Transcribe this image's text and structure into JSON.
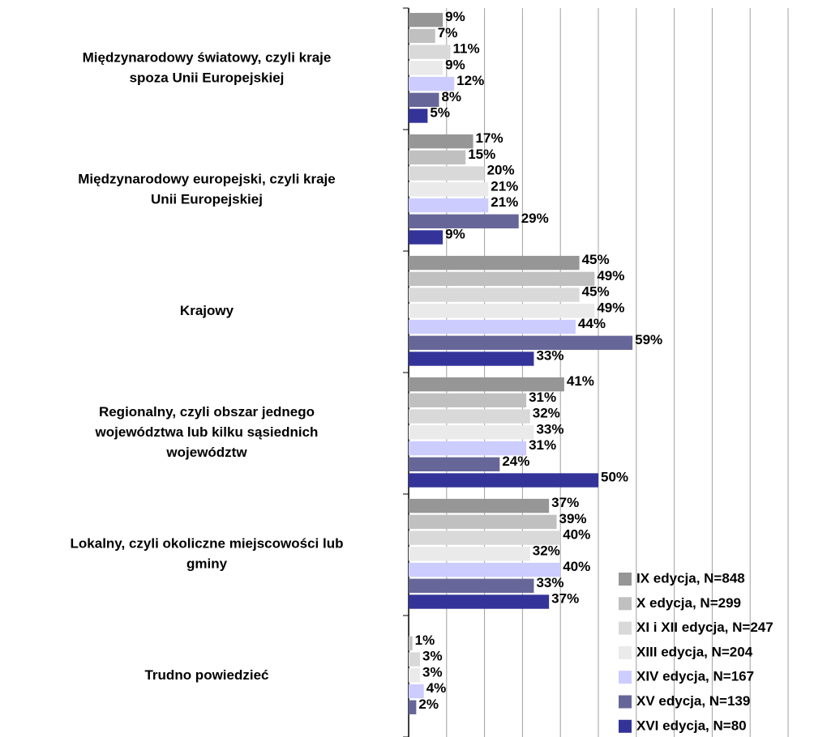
{
  "chart_data": {
    "type": "bar",
    "orientation": "horizontal",
    "categories": [
      "Międzynarodowy światowy, czyli kraje spoza Unii Europejskiej",
      "Międzynarodowy europejski, czyli kraje Unii Europejskiej",
      "Krajowy",
      "Regionalny, czyli obszar jednego województwa lub kilku sąsiednich województw",
      "Lokalny, czyli okoliczne miejscowości lub gminy",
      "Trudno powiedzieć"
    ],
    "series": [
      {
        "name": "IX edycja, N=848",
        "color": "#969696",
        "values": [
          9,
          17,
          45,
          41,
          37,
          null
        ],
        "value_labels": [
          "9%",
          "17%",
          "45%",
          "41%",
          "37%",
          null
        ]
      },
      {
        "name": "X edycja, N=299",
        "color": "#c0c0c0",
        "values": [
          7,
          15,
          49,
          31,
          39,
          1
        ],
        "value_labels": [
          "7%",
          "15%",
          "49%",
          "31%",
          "39%",
          "1%"
        ]
      },
      {
        "name": "XI i XII edycja, N=247",
        "color": "#d9d9d9",
        "values": [
          11,
          20,
          45,
          32,
          40,
          3
        ],
        "value_labels": [
          "11%",
          "20%",
          "45%",
          "32%",
          "40%",
          "3%"
        ]
      },
      {
        "name": "XIII edycja, N=204",
        "color": "#eaeaea",
        "values": [
          9,
          21,
          49,
          33,
          32,
          3
        ],
        "value_labels": [
          "9%",
          "21%",
          "49%",
          "33%",
          "32%",
          "3%"
        ]
      },
      {
        "name": "XIV edycja, N=167",
        "color": "#ccccff",
        "values": [
          12,
          21,
          44,
          31,
          40,
          4
        ],
        "value_labels": [
          "12%",
          "21%",
          "44%",
          "31%",
          "40%",
          "4%"
        ]
      },
      {
        "name": "XV edycja, N=139",
        "color": "#666699",
        "values": [
          8,
          29,
          59,
          24,
          33,
          2
        ],
        "value_labels": [
          "8%",
          "29%",
          "59%",
          "24%",
          "33%",
          "2%"
        ]
      },
      {
        "name": "XVI edycja, N=80",
        "color": "#333399",
        "values": [
          5,
          9,
          33,
          50,
          37,
          null
        ],
        "value_labels": [
          "5%",
          "9%",
          "33%",
          "50%",
          "37%",
          null
        ]
      }
    ],
    "xlim": [
      0,
      100
    ],
    "xticks": [
      0,
      10,
      20,
      30,
      40,
      50,
      60,
      70,
      80,
      90,
      100
    ],
    "grid": true,
    "legend": "lower right"
  }
}
